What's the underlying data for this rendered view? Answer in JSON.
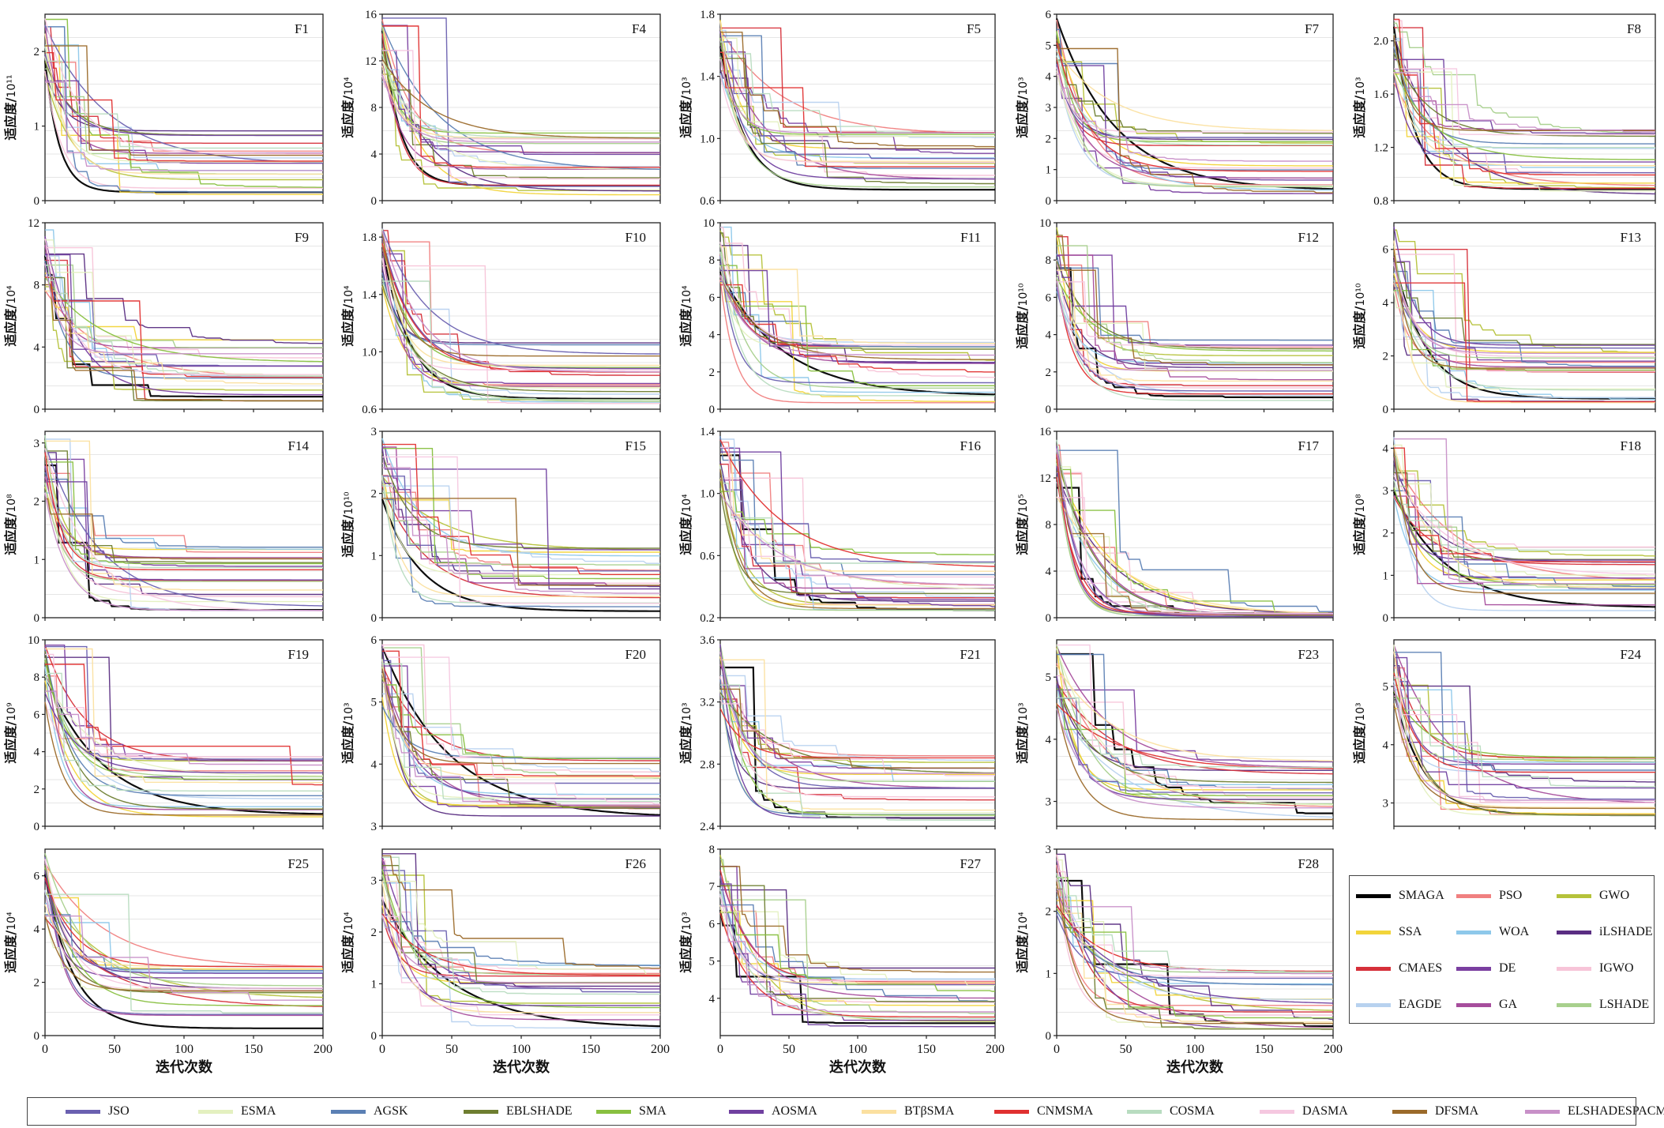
{
  "xlabel": "迭代次数",
  "ylabel_prefix": "适应度/",
  "x_ticks": [
    0,
    50,
    100,
    150,
    200
  ],
  "legend_right": [
    {
      "name": "SMAGA",
      "color": "#000000"
    },
    {
      "name": "PSO",
      "color": "#f08080"
    },
    {
      "name": "GWO",
      "color": "#b5c23a"
    },
    {
      "name": "SSA",
      "color": "#f2d43a"
    },
    {
      "name": "WOA",
      "color": "#8ec8ea"
    },
    {
      "name": "iLSHADE",
      "color": "#5a2d82"
    },
    {
      "name": "CMAES",
      "color": "#d6303a"
    },
    {
      "name": "DE",
      "color": "#7a3fa0"
    },
    {
      "name": "IGWO",
      "color": "#f7c4d8"
    },
    {
      "name": "EAGDE",
      "color": "#b8d2ef"
    },
    {
      "name": "GA",
      "color": "#a64d9c"
    },
    {
      "name": "LSHADE",
      "color": "#a8d08d"
    }
  ],
  "legend_bottom": [
    {
      "name": "JSO",
      "color": "#6a60b0"
    },
    {
      "name": "ESMA",
      "color": "#e4f0c0"
    },
    {
      "name": "AGSK",
      "color": "#5b80b4"
    },
    {
      "name": "EBLSHADE",
      "color": "#6e7e30"
    },
    {
      "name": "SMA",
      "color": "#88c040"
    },
    {
      "name": "AOSMA",
      "color": "#7040a0"
    },
    {
      "name": "BTβSMA",
      "color": "#fbe0a0"
    },
    {
      "name": "CNMSMA",
      "color": "#e03030"
    },
    {
      "name": "COSMA",
      "color": "#b8dcc0"
    },
    {
      "name": "DASMA",
      "color": "#f5c8e0"
    },
    {
      "name": "DFSMA",
      "color": "#9b6a2a"
    },
    {
      "name": "ELSHADESPACMA",
      "color": "#c890c8"
    }
  ],
  "chart_data": [
    {
      "type": "line",
      "title": "F1",
      "unit": "10¹¹",
      "ylim": [
        0,
        2.5
      ],
      "y_ticks": [
        "0",
        "1",
        "2"
      ],
      "y_tick_values": [
        0,
        1,
        2
      ]
    },
    {
      "type": "line",
      "title": "F4",
      "unit": "10⁴",
      "ylim": [
        0,
        16
      ],
      "y_ticks": [
        "0",
        "4",
        "8",
        "12",
        "16"
      ],
      "y_tick_values": [
        0,
        4,
        8,
        12,
        16
      ]
    },
    {
      "type": "line",
      "title": "F5",
      "unit": "10³",
      "ylim": [
        0.6,
        1.8
      ],
      "y_ticks": [
        "0.6",
        "1.0",
        "1.4",
        "1.8"
      ],
      "y_tick_values": [
        0.6,
        1.0,
        1.4,
        1.8
      ]
    },
    {
      "type": "line",
      "title": "F7",
      "unit": "10³",
      "ylim": [
        0,
        6
      ],
      "y_ticks": [
        "0",
        "1",
        "2",
        "3",
        "4",
        "5",
        "6"
      ],
      "y_tick_values": [
        0,
        1,
        2,
        3,
        4,
        5,
        6
      ]
    },
    {
      "type": "line",
      "title": "F8",
      "unit": "10³",
      "ylim": [
        0.8,
        2.2
      ],
      "y_ticks": [
        "0.8",
        "1.2",
        "1.6",
        "2.0"
      ],
      "y_tick_values": [
        0.8,
        1.2,
        1.6,
        2.0
      ]
    },
    {
      "type": "line",
      "title": "F9",
      "unit": "10⁴",
      "ylim": [
        0,
        12
      ],
      "y_ticks": [
        "0",
        "4",
        "8",
        "12"
      ],
      "y_tick_values": [
        0,
        4,
        8,
        12
      ]
    },
    {
      "type": "line",
      "title": "F10",
      "unit": "10⁴",
      "ylim": [
        0.6,
        1.9
      ],
      "y_ticks": [
        "0.6",
        "1.0",
        "1.4",
        "1.8"
      ],
      "y_tick_values": [
        0.6,
        1.0,
        1.4,
        1.8
      ]
    },
    {
      "type": "line",
      "title": "F11",
      "unit": "10⁴",
      "ylim": [
        0,
        10
      ],
      "y_ticks": [
        "0",
        "2",
        "4",
        "6",
        "8",
        "10"
      ],
      "y_tick_values": [
        0,
        2,
        4,
        6,
        8,
        10
      ]
    },
    {
      "type": "line",
      "title": "F12",
      "unit": "10¹⁰",
      "ylim": [
        0,
        10
      ],
      "y_ticks": [
        "0",
        "2",
        "4",
        "6",
        "8",
        "10"
      ],
      "y_tick_values": [
        0,
        2,
        4,
        6,
        8,
        10
      ]
    },
    {
      "type": "line",
      "title": "F13",
      "unit": "10¹⁰",
      "ylim": [
        0,
        7
      ],
      "y_ticks": [
        "0",
        "2",
        "4",
        "6"
      ],
      "y_tick_values": [
        0,
        2,
        4,
        6
      ]
    },
    {
      "type": "line",
      "title": "F14",
      "unit": "10⁸",
      "ylim": [
        0,
        3.2
      ],
      "y_ticks": [
        "0",
        "1",
        "2",
        "3"
      ],
      "y_tick_values": [
        0,
        1,
        2,
        3
      ]
    },
    {
      "type": "line",
      "title": "F15",
      "unit": "10¹⁰",
      "ylim": [
        0,
        3
      ],
      "y_ticks": [
        "0",
        "1",
        "2",
        "3"
      ],
      "y_tick_values": [
        0,
        1,
        2,
        3
      ]
    },
    {
      "type": "line",
      "title": "F16",
      "unit": "10⁴",
      "ylim": [
        0.2,
        1.4
      ],
      "y_ticks": [
        "0.2",
        "0.6",
        "1.0",
        "1.4"
      ],
      "y_tick_values": [
        0.2,
        0.6,
        1.0,
        1.4
      ]
    },
    {
      "type": "line",
      "title": "F17",
      "unit": "10⁵",
      "ylim": [
        0,
        16
      ],
      "y_ticks": [
        "0",
        "4",
        "8",
        "12",
        "16"
      ],
      "y_tick_values": [
        0,
        4,
        8,
        12,
        16
      ]
    },
    {
      "type": "line",
      "title": "F18",
      "unit": "10⁸",
      "ylim": [
        0,
        4.4
      ],
      "y_ticks": [
        "0",
        "1",
        "2",
        "3",
        "4"
      ],
      "y_tick_values": [
        0,
        1,
        2,
        3,
        4
      ]
    },
    {
      "type": "line",
      "title": "F19",
      "unit": "10⁹",
      "ylim": [
        0,
        10
      ],
      "y_ticks": [
        "0",
        "2",
        "4",
        "6",
        "8",
        "10"
      ],
      "y_tick_values": [
        0,
        2,
        4,
        6,
        8,
        10
      ]
    },
    {
      "type": "line",
      "title": "F20",
      "unit": "10³",
      "ylim": [
        3,
        6
      ],
      "y_ticks": [
        "3",
        "4",
        "5",
        "6"
      ],
      "y_tick_values": [
        3,
        4,
        5,
        6
      ]
    },
    {
      "type": "line",
      "title": "F21",
      "unit": "10³",
      "ylim": [
        2.4,
        3.6
      ],
      "y_ticks": [
        "2.4",
        "2.8",
        "3.2",
        "3.6"
      ],
      "y_tick_values": [
        2.4,
        2.8,
        3.2,
        3.6
      ]
    },
    {
      "type": "line",
      "title": "F23",
      "unit": "10³",
      "ylim": [
        2.6,
        5.6
      ],
      "y_ticks": [
        "3",
        "4",
        "5"
      ],
      "y_tick_values": [
        3,
        4,
        5
      ]
    },
    {
      "type": "line",
      "title": "F24",
      "unit": "10³",
      "ylim": [
        2.6,
        5.8
      ],
      "y_ticks": [
        "3",
        "4",
        "5"
      ],
      "y_tick_values": [
        3,
        4,
        5
      ]
    },
    {
      "type": "line",
      "title": "F25",
      "unit": "10⁴",
      "ylim": [
        0,
        7
      ],
      "y_ticks": [
        "0",
        "2",
        "4",
        "6"
      ],
      "y_tick_values": [
        0,
        2,
        4,
        6
      ]
    },
    {
      "type": "line",
      "title": "F26",
      "unit": "10⁴",
      "ylim": [
        0,
        3.6
      ],
      "y_ticks": [
        "0",
        "1",
        "2",
        "3"
      ],
      "y_tick_values": [
        0,
        1,
        2,
        3
      ]
    },
    {
      "type": "line",
      "title": "F27",
      "unit": "10³",
      "ylim": [
        3,
        8
      ],
      "y_ticks": [
        "4",
        "5",
        "6",
        "7",
        "8"
      ],
      "y_tick_values": [
        4,
        5,
        6,
        7,
        8
      ]
    },
    {
      "type": "line",
      "title": "F28",
      "unit": "10⁴",
      "ylim": [
        0,
        3
      ],
      "y_ticks": [
        "0",
        "1",
        "2",
        "3"
      ],
      "y_tick_values": [
        0,
        1,
        2,
        3
      ]
    }
  ]
}
